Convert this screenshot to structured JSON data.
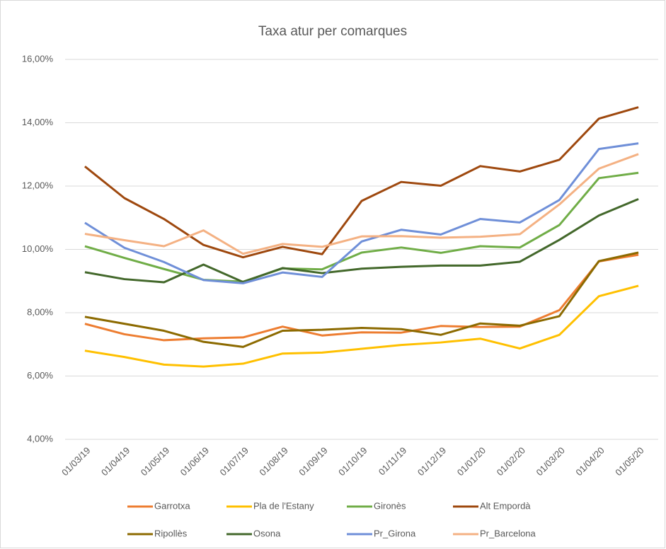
{
  "chart_data": {
    "type": "line",
    "title": "Taxa atur per comarques",
    "categories": [
      "01/03/19",
      "01/04/19",
      "01/05/19",
      "01/06/19",
      "01/07/19",
      "01/08/19",
      "01/09/19",
      "01/10/19",
      "01/11/19",
      "01/12/19",
      "01/01/20",
      "01/02/20",
      "01/03/20",
      "01/04/20",
      "01/05/20"
    ],
    "series": [
      {
        "name": "Garrotxa",
        "color": "#ed7d31",
        "values": [
          7.65,
          7.32,
          7.13,
          7.19,
          7.22,
          7.56,
          7.28,
          7.38,
          7.37,
          7.58,
          7.55,
          7.56,
          8.08,
          9.62,
          9.83
        ]
      },
      {
        "name": "Pla de l'Estany",
        "color": "#ffc000",
        "values": [
          6.8,
          6.6,
          6.36,
          6.3,
          6.39,
          6.71,
          6.74,
          6.86,
          6.98,
          7.06,
          7.18,
          6.87,
          7.3,
          8.52,
          8.85
        ]
      },
      {
        "name": "Gironès",
        "color": "#70ad47",
        "values": [
          10.1,
          9.73,
          9.38,
          9.04,
          8.98,
          9.4,
          9.37,
          9.9,
          10.06,
          9.89,
          10.1,
          10.06,
          10.77,
          12.25,
          12.42
        ]
      },
      {
        "name": "Alt Empordà",
        "color": "#9e480e",
        "values": [
          12.62,
          11.62,
          10.96,
          10.14,
          9.75,
          10.08,
          9.85,
          11.53,
          12.13,
          12.01,
          12.63,
          12.46,
          12.83,
          14.13,
          14.49
        ]
      },
      {
        "name": "Ripollès",
        "color": "#8c6a00",
        "values": [
          7.87,
          7.65,
          7.43,
          7.08,
          6.92,
          7.43,
          7.46,
          7.52,
          7.48,
          7.3,
          7.66,
          7.59,
          7.89,
          9.63,
          9.9
        ]
      },
      {
        "name": "Osona",
        "color": "#43682b",
        "values": [
          9.28,
          9.06,
          8.96,
          9.52,
          8.97,
          9.41,
          9.25,
          9.39,
          9.45,
          9.49,
          9.49,
          9.61,
          10.3,
          11.07,
          11.59
        ]
      },
      {
        "name": "Pr_Girona",
        "color": "#6f8fd8",
        "values": [
          10.84,
          10.05,
          9.6,
          9.03,
          8.93,
          9.27,
          9.13,
          10.25,
          10.62,
          10.47,
          10.96,
          10.85,
          11.56,
          13.17,
          13.35
        ]
      },
      {
        "name": "Pr_Barcelona",
        "color": "#f4b183",
        "values": [
          10.49,
          10.29,
          10.1,
          10.6,
          9.86,
          10.17,
          10.08,
          10.41,
          10.42,
          10.37,
          10.4,
          10.48,
          11.42,
          12.55,
          13.01
        ]
      }
    ],
    "ylim": [
      4,
      16
    ],
    "yticks": [
      {
        "value": 4,
        "label": "4,00%"
      },
      {
        "value": 6,
        "label": "6,00%"
      },
      {
        "value": 8,
        "label": "8,00%"
      },
      {
        "value": 10,
        "label": "10,00%"
      },
      {
        "value": 12,
        "label": "12,00%"
      },
      {
        "value": 14,
        "label": "14,00%"
      },
      {
        "value": 16,
        "label": "16,00%"
      }
    ],
    "grid": true,
    "legend": "bottom"
  }
}
